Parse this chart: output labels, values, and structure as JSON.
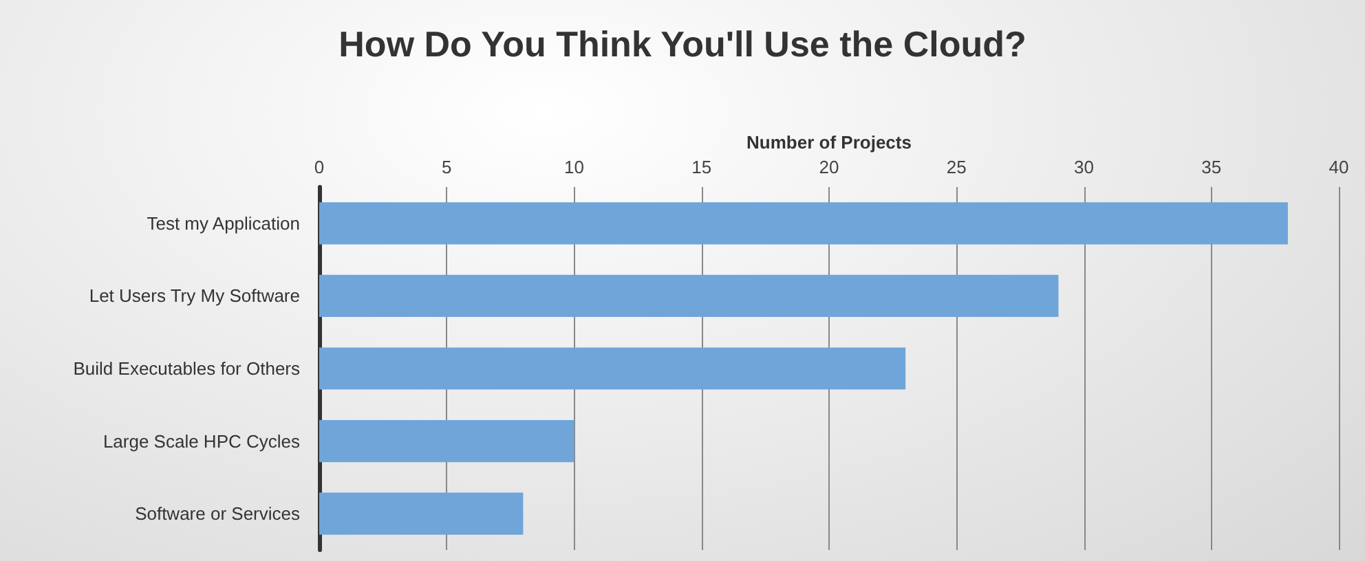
{
  "chart_data": {
    "type": "bar",
    "orientation": "horizontal",
    "title": "How Do You Think You'll Use the Cloud?",
    "xlabel": "Number of Projects",
    "categories": [
      "Test my Application",
      "Let Users Try My Software",
      "Build Executables for Others",
      "Large Scale HPC Cycles",
      "Software or Services"
    ],
    "values": [
      38,
      29,
      23,
      10,
      8
    ],
    "color": "#6fa5d9",
    "xlim": [
      0,
      40
    ],
    "xticks": [
      0,
      5,
      10,
      15,
      20,
      25,
      30,
      35,
      40
    ],
    "grid": "x"
  }
}
